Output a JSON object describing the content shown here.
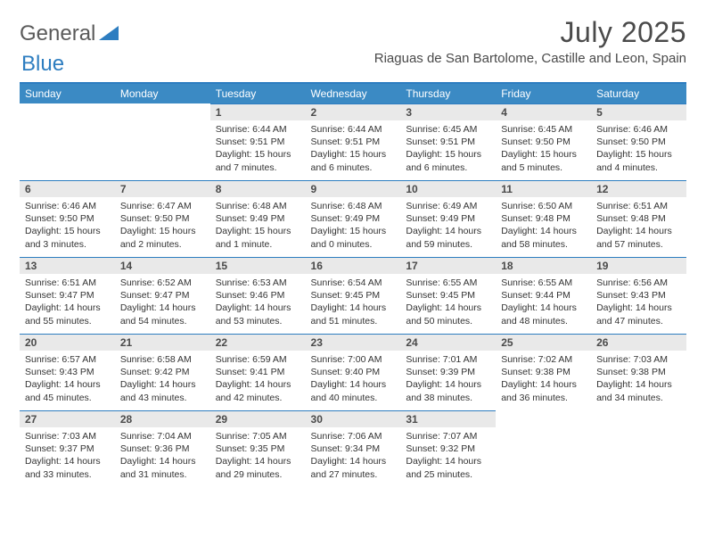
{
  "logo": {
    "word1": "General",
    "word2": "Blue"
  },
  "header": {
    "title": "July 2025",
    "location": "Riaguas de San Bartolome, Castille and Leon, Spain"
  },
  "colors": {
    "header_bg": "#3b8ac4",
    "rule": "#2d7dc0",
    "daynum_bg": "#e9e9e9",
    "text": "#333333",
    "page_bg": "#ffffff"
  },
  "typography": {
    "title_fontsize": 32,
    "location_fontsize": 15,
    "dayheader_fontsize": 12,
    "daynum_fontsize": 12,
    "body_fontsize": 10.5
  },
  "layout": {
    "cols": 7,
    "rows": 5
  },
  "day_headers": [
    "Sunday",
    "Monday",
    "Tuesday",
    "Wednesday",
    "Thursday",
    "Friday",
    "Saturday"
  ],
  "weeks": [
    [
      null,
      null,
      {
        "n": "1",
        "sunrise": "6:44 AM",
        "sunset": "9:51 PM",
        "daylight": "15 hours and 7 minutes."
      },
      {
        "n": "2",
        "sunrise": "6:44 AM",
        "sunset": "9:51 PM",
        "daylight": "15 hours and 6 minutes."
      },
      {
        "n": "3",
        "sunrise": "6:45 AM",
        "sunset": "9:51 PM",
        "daylight": "15 hours and 6 minutes."
      },
      {
        "n": "4",
        "sunrise": "6:45 AM",
        "sunset": "9:50 PM",
        "daylight": "15 hours and 5 minutes."
      },
      {
        "n": "5",
        "sunrise": "6:46 AM",
        "sunset": "9:50 PM",
        "daylight": "15 hours and 4 minutes."
      }
    ],
    [
      {
        "n": "6",
        "sunrise": "6:46 AM",
        "sunset": "9:50 PM",
        "daylight": "15 hours and 3 minutes."
      },
      {
        "n": "7",
        "sunrise": "6:47 AM",
        "sunset": "9:50 PM",
        "daylight": "15 hours and 2 minutes."
      },
      {
        "n": "8",
        "sunrise": "6:48 AM",
        "sunset": "9:49 PM",
        "daylight": "15 hours and 1 minute."
      },
      {
        "n": "9",
        "sunrise": "6:48 AM",
        "sunset": "9:49 PM",
        "daylight": "15 hours and 0 minutes."
      },
      {
        "n": "10",
        "sunrise": "6:49 AM",
        "sunset": "9:49 PM",
        "daylight": "14 hours and 59 minutes."
      },
      {
        "n": "11",
        "sunrise": "6:50 AM",
        "sunset": "9:48 PM",
        "daylight": "14 hours and 58 minutes."
      },
      {
        "n": "12",
        "sunrise": "6:51 AM",
        "sunset": "9:48 PM",
        "daylight": "14 hours and 57 minutes."
      }
    ],
    [
      {
        "n": "13",
        "sunrise": "6:51 AM",
        "sunset": "9:47 PM",
        "daylight": "14 hours and 55 minutes."
      },
      {
        "n": "14",
        "sunrise": "6:52 AM",
        "sunset": "9:47 PM",
        "daylight": "14 hours and 54 minutes."
      },
      {
        "n": "15",
        "sunrise": "6:53 AM",
        "sunset": "9:46 PM",
        "daylight": "14 hours and 53 minutes."
      },
      {
        "n": "16",
        "sunrise": "6:54 AM",
        "sunset": "9:45 PM",
        "daylight": "14 hours and 51 minutes."
      },
      {
        "n": "17",
        "sunrise": "6:55 AM",
        "sunset": "9:45 PM",
        "daylight": "14 hours and 50 minutes."
      },
      {
        "n": "18",
        "sunrise": "6:55 AM",
        "sunset": "9:44 PM",
        "daylight": "14 hours and 48 minutes."
      },
      {
        "n": "19",
        "sunrise": "6:56 AM",
        "sunset": "9:43 PM",
        "daylight": "14 hours and 47 minutes."
      }
    ],
    [
      {
        "n": "20",
        "sunrise": "6:57 AM",
        "sunset": "9:43 PM",
        "daylight": "14 hours and 45 minutes."
      },
      {
        "n": "21",
        "sunrise": "6:58 AM",
        "sunset": "9:42 PM",
        "daylight": "14 hours and 43 minutes."
      },
      {
        "n": "22",
        "sunrise": "6:59 AM",
        "sunset": "9:41 PM",
        "daylight": "14 hours and 42 minutes."
      },
      {
        "n": "23",
        "sunrise": "7:00 AM",
        "sunset": "9:40 PM",
        "daylight": "14 hours and 40 minutes."
      },
      {
        "n": "24",
        "sunrise": "7:01 AM",
        "sunset": "9:39 PM",
        "daylight": "14 hours and 38 minutes."
      },
      {
        "n": "25",
        "sunrise": "7:02 AM",
        "sunset": "9:38 PM",
        "daylight": "14 hours and 36 minutes."
      },
      {
        "n": "26",
        "sunrise": "7:03 AM",
        "sunset": "9:38 PM",
        "daylight": "14 hours and 34 minutes."
      }
    ],
    [
      {
        "n": "27",
        "sunrise": "7:03 AM",
        "sunset": "9:37 PM",
        "daylight": "14 hours and 33 minutes."
      },
      {
        "n": "28",
        "sunrise": "7:04 AM",
        "sunset": "9:36 PM",
        "daylight": "14 hours and 31 minutes."
      },
      {
        "n": "29",
        "sunrise": "7:05 AM",
        "sunset": "9:35 PM",
        "daylight": "14 hours and 29 minutes."
      },
      {
        "n": "30",
        "sunrise": "7:06 AM",
        "sunset": "9:34 PM",
        "daylight": "14 hours and 27 minutes."
      },
      {
        "n": "31",
        "sunrise": "7:07 AM",
        "sunset": "9:32 PM",
        "daylight": "14 hours and 25 minutes."
      },
      null,
      null
    ]
  ],
  "labels": {
    "sunrise": "Sunrise: ",
    "sunset": "Sunset: ",
    "daylight": "Daylight: "
  }
}
